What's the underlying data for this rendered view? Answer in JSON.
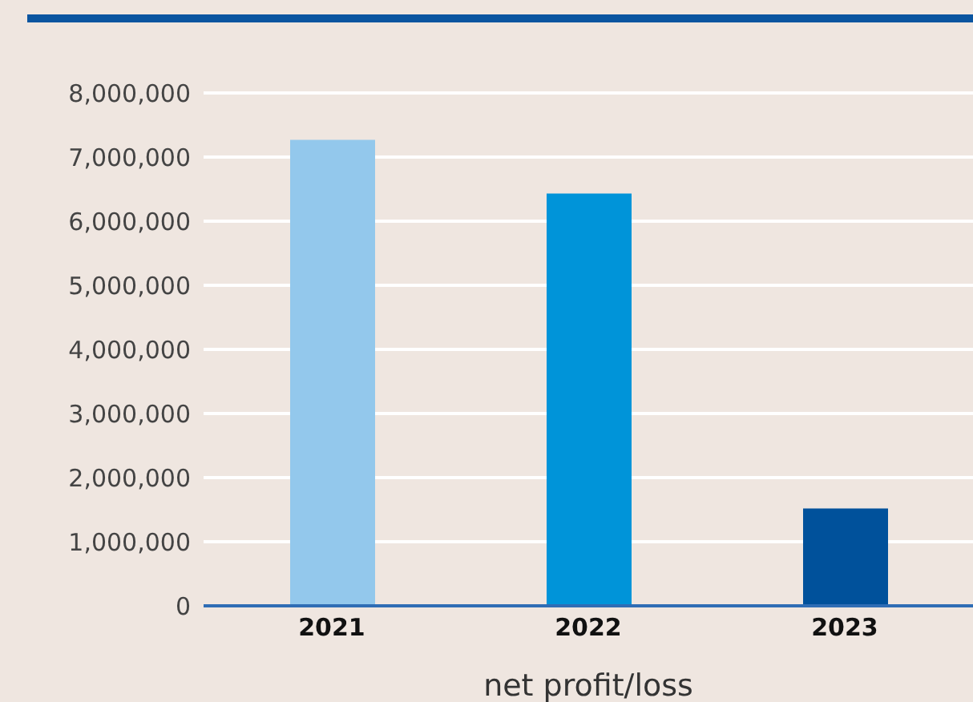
{
  "chart_data": {
    "type": "bar",
    "xlabel": "net profit/loss",
    "categories": [
      "2021",
      "2022",
      "2023"
    ],
    "values": [
      7270000,
      6430000,
      1520000
    ],
    "colors": [
      "#93c8ec",
      "#0094d9",
      "#00519b"
    ],
    "ylim": [
      0,
      8000000
    ],
    "yticks": [
      0,
      {
        "value": 1000000,
        "label": "1,000,000"
      },
      {
        "value": 2000000,
        "label": "2,000,000"
      },
      {
        "value": 3000000,
        "label": "3,000,000"
      },
      {
        "value": 4000000,
        "label": "4,000,000"
      },
      {
        "value": 5000000,
        "label": "5,000,000"
      },
      {
        "value": 6000000,
        "label": "6,000,000"
      },
      {
        "value": 7000000,
        "label": "7,000,000"
      },
      {
        "value": 8000000,
        "label": "8,000,000"
      }
    ],
    "grid": "y"
  }
}
